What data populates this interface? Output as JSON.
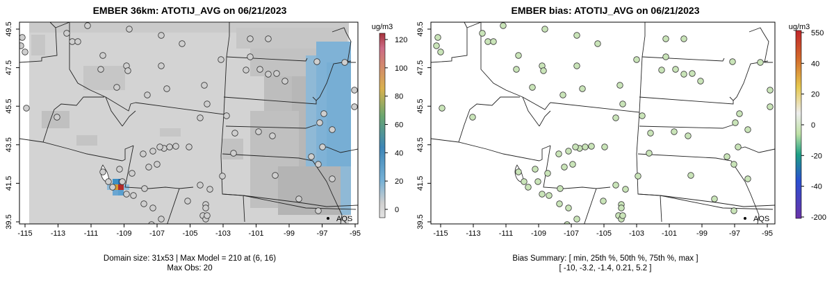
{
  "left_panel": {
    "title": "EMBER 36km: ATOTIJ_AVG on 06/21/2023",
    "caption_line1": "Domain size: 31x53 | Max Model = 210 at (6, 16)",
    "caption_line2": "Max Obs: 20",
    "colorbar": {
      "unit": "ug/m3",
      "ticks": [
        "120",
        "100",
        "80",
        "60",
        "40",
        "20",
        "0"
      ],
      "colors": [
        "#b2182b",
        "#d6604d",
        "#f4a582",
        "#fddbc7",
        "#e6e6e6",
        "#d1e5f0",
        "#92c5de",
        "#4393c3",
        "#2166ac"
      ]
    },
    "station_label": "AQS"
  },
  "right_panel": {
    "title": "EMBER bias: ATOTIJ_AVG on 06/21/2023",
    "caption_line1": "Bias Summary: [ min, 25th %, 50th %, 75th %, max ]",
    "caption_line2": "[ -10,   -3.2,   -1.4,   0.21,   5.2 ]",
    "colorbar": {
      "unit": "ug/m3",
      "ticks": [
        "550",
        "40",
        "20",
        "0",
        "-20",
        "-40",
        "-200"
      ]
    },
    "station_label": "AQS"
  },
  "axes": {
    "x_ticks": [
      "-115",
      "-113",
      "-111",
      "-109",
      "-107",
      "-105",
      "-103",
      "-101",
      "-99",
      "-97",
      "-95"
    ],
    "y_ticks": [
      "49.5",
      "47.5",
      "45.5",
      "43.5",
      "41.5",
      "39.5"
    ]
  }
}
